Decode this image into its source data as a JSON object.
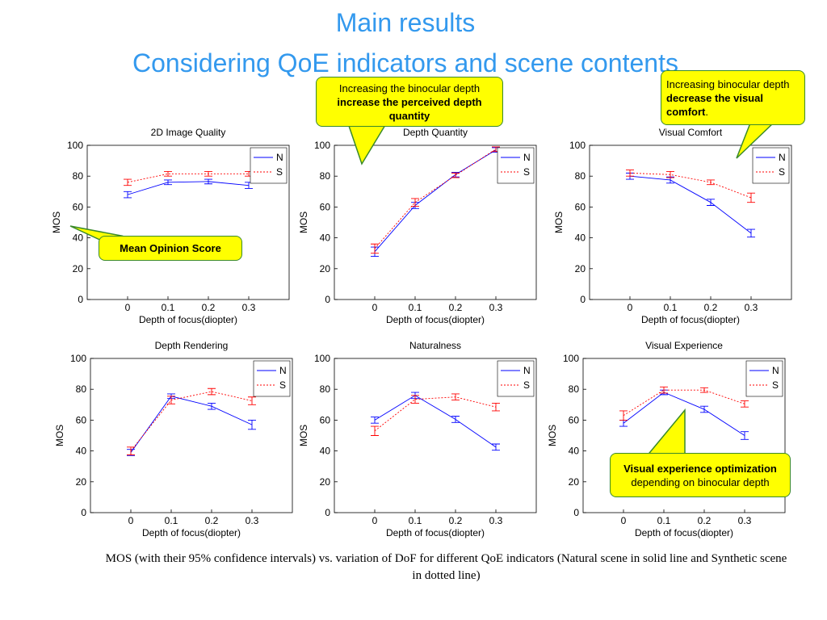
{
  "title": "Main results",
  "subtitle": "Considering QoE indicators and scene contents",
  "chart_data": [
    {
      "type": "line",
      "title": "2D Image Quality",
      "x_label": "Depth of focus(diopter)",
      "y_label": "MOS",
      "x": [
        0,
        0.1,
        0.2,
        0.3
      ],
      "xlim": [
        -0.1,
        0.4
      ],
      "xticks": [
        0,
        0.1,
        0.2,
        0.3
      ],
      "ylim": [
        0,
        100
      ],
      "yticks": [
        0,
        20,
        40,
        60,
        80,
        100
      ],
      "legend": "upper right",
      "series": [
        {
          "name": "N",
          "color": "#0000ff",
          "line_style": "solid",
          "values": [
            68,
            76,
            76.5,
            74
          ],
          "errors": [
            2,
            1.5,
            1.5,
            2
          ]
        },
        {
          "name": "S",
          "color": "#ff0000",
          "line_style": "dotted",
          "values": [
            76,
            81.5,
            81.5,
            81.5
          ],
          "errors": [
            2,
            1.5,
            1.5,
            1.5
          ]
        }
      ]
    },
    {
      "type": "line",
      "title": "Depth Quantity",
      "x_label": "Depth of focus(diopter)",
      "y_label": "MOS",
      "x": [
        0,
        0.1,
        0.2,
        0.3
      ],
      "xlim": [
        -0.1,
        0.4
      ],
      "xticks": [
        0,
        0.1,
        0.2,
        0.3
      ],
      "ylim": [
        0,
        100
      ],
      "yticks": [
        0,
        20,
        40,
        60,
        80,
        100
      ],
      "legend": "upper right",
      "series": [
        {
          "name": "N",
          "color": "#0000ff",
          "line_style": "solid",
          "values": [
            31,
            61,
            81,
            97
          ],
          "errors": [
            3,
            2,
            1.5,
            1.5
          ]
        },
        {
          "name": "S",
          "color": "#ff0000",
          "line_style": "dotted",
          "values": [
            33,
            63,
            80.5,
            97.5
          ],
          "errors": [
            3,
            2.5,
            1.5,
            1.5
          ]
        }
      ]
    },
    {
      "type": "line",
      "title": "Visual Comfort",
      "x_label": "Depth of focus(diopter)",
      "y_label": "MOS",
      "x": [
        0,
        0.1,
        0.2,
        0.3
      ],
      "xlim": [
        -0.1,
        0.4
      ],
      "xticks": [
        0,
        0.1,
        0.2,
        0.3
      ],
      "ylim": [
        0,
        100
      ],
      "yticks": [
        0,
        20,
        40,
        60,
        80,
        100
      ],
      "legend": "upper right",
      "series": [
        {
          "name": "N",
          "color": "#0000ff",
          "line_style": "solid",
          "values": [
            80,
            77.5,
            63,
            43
          ],
          "errors": [
            2,
            2,
            2,
            2.5
          ]
        },
        {
          "name": "S",
          "color": "#ff0000",
          "line_style": "dotted",
          "values": [
            82,
            81,
            76,
            66
          ],
          "errors": [
            2,
            2,
            1.5,
            3
          ]
        }
      ]
    },
    {
      "type": "line",
      "title": "Depth Rendering",
      "x_label": "Depth of focus(diopter)",
      "y_label": "MOS",
      "x": [
        0,
        0.1,
        0.2,
        0.3
      ],
      "xlim": [
        -0.1,
        0.4
      ],
      "xticks": [
        0,
        0.1,
        0.2,
        0.3
      ],
      "ylim": [
        0,
        100
      ],
      "yticks": [
        0,
        20,
        40,
        60,
        80,
        100
      ],
      "legend": "upper right",
      "series": [
        {
          "name": "N",
          "color": "#0000ff",
          "line_style": "solid",
          "values": [
            39,
            75.5,
            69,
            57
          ],
          "errors": [
            2,
            1.5,
            2,
            3
          ]
        },
        {
          "name": "S",
          "color": "#ff0000",
          "line_style": "dotted",
          "values": [
            40,
            73,
            78.5,
            72.5
          ],
          "errors": [
            2.5,
            2.5,
            2,
            2.5
          ]
        }
      ]
    },
    {
      "type": "line",
      "title": "Naturalness",
      "x_label": "Depth of focus(diopter)",
      "y_label": "MOS",
      "x": [
        0,
        0.1,
        0.2,
        0.3
      ],
      "xlim": [
        -0.1,
        0.4
      ],
      "xticks": [
        0,
        0.1,
        0.2,
        0.3
      ],
      "ylim": [
        0,
        100
      ],
      "yticks": [
        0,
        20,
        40,
        60,
        80,
        100
      ],
      "legend": "upper right",
      "series": [
        {
          "name": "N",
          "color": "#0000ff",
          "line_style": "solid",
          "values": [
            60,
            76,
            60.5,
            42.5
          ],
          "errors": [
            2,
            2,
            2,
            2
          ]
        },
        {
          "name": "S",
          "color": "#ff0000",
          "line_style": "dotted",
          "values": [
            53,
            73.5,
            75,
            68.5
          ],
          "errors": [
            3,
            2.5,
            2,
            2.5
          ]
        }
      ]
    },
    {
      "type": "line",
      "title": "Visual Experience",
      "x_label": "Depth of focus(diopter)",
      "y_label": "MOS",
      "x": [
        0,
        0.1,
        0.2,
        0.3
      ],
      "xlim": [
        -0.1,
        0.4
      ],
      "xticks": [
        0,
        0.1,
        0.2,
        0.3
      ],
      "ylim": [
        0,
        100
      ],
      "yticks": [
        0,
        20,
        40,
        60,
        80,
        100
      ],
      "legend": "upper right",
      "series": [
        {
          "name": "N",
          "color": "#0000ff",
          "line_style": "solid",
          "values": [
            58,
            78,
            67,
            50
          ],
          "errors": [
            2,
            1.5,
            2,
            2.5
          ]
        },
        {
          "name": "S",
          "color": "#ff0000",
          "line_style": "dotted",
          "values": [
            63,
            79.5,
            79.5,
            70.5
          ],
          "errors": [
            3,
            2,
            1.5,
            2
          ]
        }
      ]
    }
  ],
  "callouts": [
    {
      "parts": [
        {
          "text": "Increasing the binocular depth ",
          "bold": false
        },
        {
          "text": "increase the perceived depth quantity",
          "bold": true
        }
      ]
    },
    {
      "parts": [
        {
          "text": "Increasing binocular depth ",
          "bold": false
        },
        {
          "text": "decrease the visual comfort",
          "bold": true
        },
        {
          "text": ".",
          "bold": false
        }
      ]
    },
    {
      "parts": [
        {
          "text": "Mean Opinion Score",
          "bold": true
        }
      ]
    },
    {
      "parts": [
        {
          "text": "Visual experience optimization",
          "bold": true
        },
        {
          "text": " depending on binocular depth",
          "bold": false
        }
      ]
    }
  ],
  "caption": "MOS (with their 95% confidence intervals) vs. variation of DoF for different QoE indicators (Natural scene in solid line and Synthetic scene in dotted line)"
}
